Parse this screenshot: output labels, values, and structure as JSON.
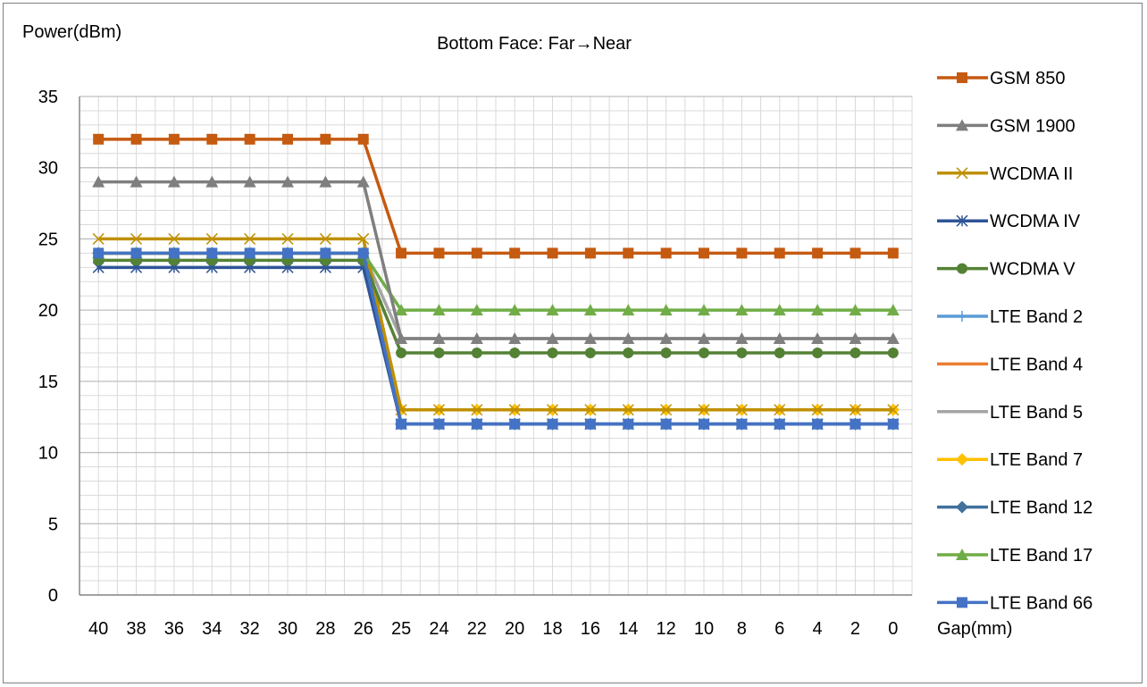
{
  "chart_data": {
    "type": "line",
    "title": "Bottom Face: Far→Near",
    "ylabel": "Power(dBm)",
    "xlabel": "Gap(mm)",
    "categories": [
      "40",
      "38",
      "36",
      "34",
      "32",
      "30",
      "28",
      "26",
      "25",
      "24",
      "22",
      "20",
      "18",
      "16",
      "14",
      "12",
      "10",
      "8",
      "6",
      "4",
      "2",
      "0"
    ],
    "ylim": [
      0,
      35
    ],
    "yticks": [
      0,
      5,
      10,
      15,
      20,
      25,
      30,
      35
    ],
    "grid": true,
    "legend_position": "right",
    "series": [
      {
        "name": "GSM 850",
        "color": "#c55a11",
        "marker": "square",
        "values": [
          32,
          32,
          32,
          32,
          32,
          32,
          32,
          32,
          24,
          24,
          24,
          24,
          24,
          24,
          24,
          24,
          24,
          24,
          24,
          24,
          24,
          24
        ]
      },
      {
        "name": "GSM 1900",
        "color": "#7f7f7f",
        "marker": "triangle",
        "values": [
          29,
          29,
          29,
          29,
          29,
          29,
          29,
          29,
          18,
          18,
          18,
          18,
          18,
          18,
          18,
          18,
          18,
          18,
          18,
          18,
          18,
          18
        ]
      },
      {
        "name": "WCDMA II",
        "color": "#bf9000",
        "marker": "x",
        "values": [
          25,
          25,
          25,
          25,
          25,
          25,
          25,
          25,
          13,
          13,
          13,
          13,
          13,
          13,
          13,
          13,
          13,
          13,
          13,
          13,
          13,
          13
        ]
      },
      {
        "name": "WCDMA IV",
        "color": "#2f5597",
        "marker": "star",
        "values": [
          23,
          23,
          23,
          23,
          23,
          23,
          23,
          23,
          12,
          12,
          12,
          12,
          12,
          12,
          12,
          12,
          12,
          12,
          12,
          12,
          12,
          12
        ]
      },
      {
        "name": "WCDMA V",
        "color": "#548235",
        "marker": "circle",
        "values": [
          23.5,
          23.5,
          23.5,
          23.5,
          23.5,
          23.5,
          23.5,
          23.5,
          17,
          17,
          17,
          17,
          17,
          17,
          17,
          17,
          17,
          17,
          17,
          17,
          17,
          17
        ]
      },
      {
        "name": "LTE Band 2",
        "color": "#5b9bd5",
        "marker": "plus",
        "values": [
          24,
          24,
          24,
          24,
          24,
          24,
          24,
          24,
          12,
          12,
          12,
          12,
          12,
          12,
          12,
          12,
          12,
          12,
          12,
          12,
          12,
          12
        ]
      },
      {
        "name": "LTE Band 4",
        "color": "#ed7d31",
        "marker": "none",
        "values": [
          24,
          24,
          24,
          24,
          24,
          24,
          24,
          24,
          13,
          13,
          13,
          13,
          13,
          13,
          13,
          13,
          13,
          13,
          13,
          13,
          13,
          13
        ]
      },
      {
        "name": "LTE Band 5",
        "color": "#a5a5a5",
        "marker": "none",
        "values": [
          24,
          24,
          24,
          24,
          24,
          24,
          24,
          24,
          18,
          18,
          18,
          18,
          18,
          18,
          18,
          18,
          18,
          18,
          18,
          18,
          18,
          18
        ]
      },
      {
        "name": "LTE Band 7",
        "color": "#ffc000",
        "marker": "diamond",
        "values": [
          24,
          24,
          24,
          24,
          24,
          24,
          24,
          24,
          13,
          13,
          13,
          13,
          13,
          13,
          13,
          13,
          13,
          13,
          13,
          13,
          13,
          13
        ]
      },
      {
        "name": "LTE Band 12",
        "color": "#41719c",
        "marker": "diamond",
        "values": [
          24,
          24,
          24,
          24,
          24,
          24,
          24,
          24,
          12,
          12,
          12,
          12,
          12,
          12,
          12,
          12,
          12,
          12,
          12,
          12,
          12,
          12
        ]
      },
      {
        "name": "LTE Band 17",
        "color": "#70ad47",
        "marker": "triangle",
        "values": [
          24,
          24,
          24,
          24,
          24,
          24,
          24,
          24,
          20,
          20,
          20,
          20,
          20,
          20,
          20,
          20,
          20,
          20,
          20,
          20,
          20,
          20
        ]
      },
      {
        "name": "LTE Band 66",
        "color": "#4472c4",
        "marker": "square",
        "values": [
          24,
          24,
          24,
          24,
          24,
          24,
          24,
          24,
          12,
          12,
          12,
          12,
          12,
          12,
          12,
          12,
          12,
          12,
          12,
          12,
          12,
          12
        ]
      }
    ]
  }
}
